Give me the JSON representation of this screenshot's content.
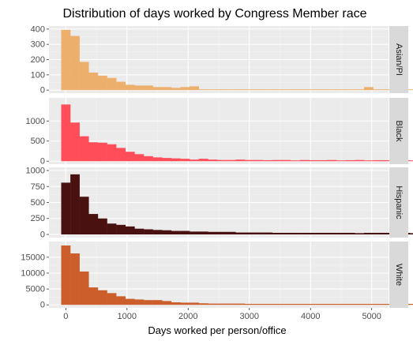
{
  "chart_data": {
    "type": "bar",
    "title": "Distribution of days worked by Congress Member race",
    "xlabel": "Days worked per person/office",
    "ylabel": "",
    "grid": true,
    "x_ticks": [
      0,
      1000,
      2000,
      3000,
      4000,
      5000
    ],
    "xlim": [
      -275,
      5275
    ],
    "bin_width": 150,
    "bin_start": -75,
    "facets": [
      {
        "name": "Asian/PI",
        "color": "#EDB06C",
        "ylim": [
          0,
          400
        ],
        "y_ticks": [
          0,
          100,
          200,
          300,
          400
        ],
        "values": [
          395,
          355,
          185,
          115,
          95,
          80,
          55,
          35,
          30,
          30,
          20,
          20,
          15,
          20,
          25,
          5,
          5,
          5,
          5,
          5,
          5,
          5,
          5,
          5,
          5,
          5,
          5,
          5,
          5,
          5,
          5,
          5,
          5,
          20,
          5,
          5,
          5,
          5,
          5,
          30,
          5,
          5
        ]
      },
      {
        "name": "Black",
        "color": "#FF4D5A",
        "ylim": [
          0,
          1500
        ],
        "y_ticks": [
          0,
          500,
          1000
        ],
        "values": [
          1410,
          960,
          620,
          470,
          460,
          420,
          330,
          235,
          175,
          125,
          95,
          80,
          70,
          60,
          40,
          60,
          40,
          30,
          30,
          40,
          30,
          30,
          25,
          30,
          30,
          20,
          30,
          25,
          25,
          30,
          20,
          25,
          30,
          20,
          25,
          25,
          20,
          25,
          20,
          25,
          20,
          70
        ]
      },
      {
        "name": "Hispanic",
        "color": "#4A1111",
        "ylim": [
          0,
          1000
        ],
        "y_ticks": [
          0,
          250,
          500,
          750,
          1000
        ],
        "values": [
          810,
          940,
          590,
          320,
          250,
          170,
          150,
          125,
          90,
          80,
          70,
          65,
          55,
          55,
          45,
          45,
          40,
          40,
          40,
          30,
          30,
          30,
          30,
          25,
          25,
          25,
          25,
          25,
          25,
          25,
          25,
          25,
          20,
          25,
          25,
          25,
          20,
          25,
          20,
          30,
          25,
          60
        ]
      },
      {
        "name": "White",
        "color": "#CC5E2B",
        "ylim": [
          0,
          19000
        ],
        "y_ticks": [
          0,
          5000,
          10000,
          15000
        ],
        "values": [
          18700,
          16200,
          10500,
          5500,
          4600,
          3700,
          2700,
          1900,
          1700,
          1500,
          1500,
          1200,
          800,
          700,
          700,
          500,
          400,
          400,
          400,
          400,
          300,
          300,
          300,
          300,
          300,
          300,
          300,
          300,
          300,
          300,
          300,
          300,
          300,
          300,
          300,
          300,
          300,
          300,
          300,
          300,
          300,
          300
        ]
      }
    ]
  }
}
